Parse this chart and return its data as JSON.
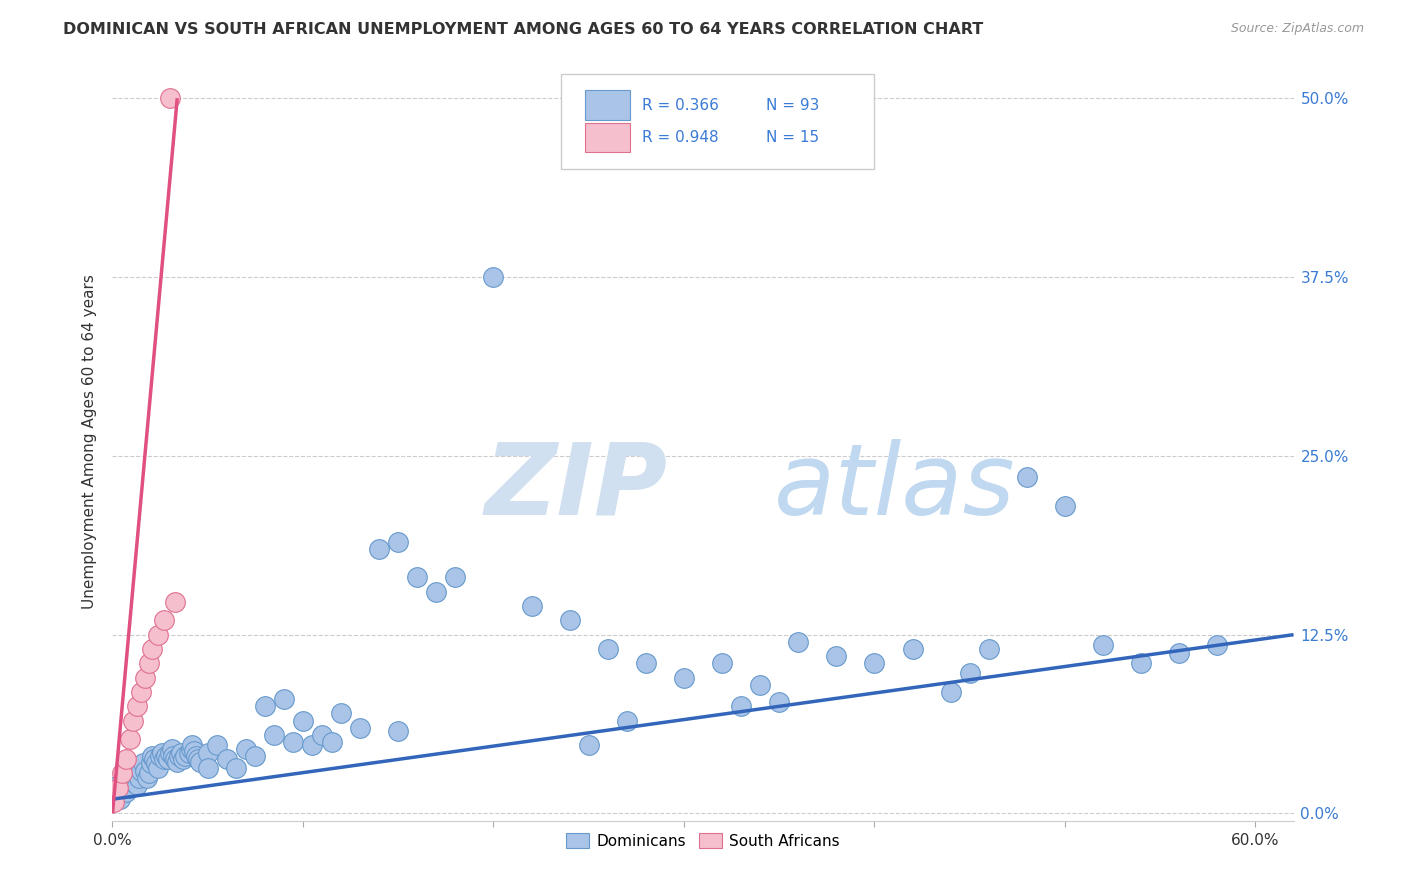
{
  "title": "DOMINICAN VS SOUTH AFRICAN UNEMPLOYMENT AMONG AGES 60 TO 64 YEARS CORRELATION CHART",
  "source": "Source: ZipAtlas.com",
  "ylabel": "Unemployment Among Ages 60 to 64 years",
  "xlim": [
    0.0,
    0.62
  ],
  "ylim": [
    -0.005,
    0.525
  ],
  "dominican_color": "#aac4e8",
  "dominican_edge": "#6699cc",
  "south_african_color": "#f5bfcd",
  "south_african_edge": "#e07090",
  "trend_dominican_color": "#3366bb",
  "trend_south_african_color": "#e05080",
  "r_dominican": 0.366,
  "n_dominican": 93,
  "r_south_african": 0.948,
  "n_south_african": 15,
  "legend_label_1": "Dominicans",
  "legend_label_2": "South Africans",
  "dominican_x": [
    0.001,
    0.002,
    0.003,
    0.004,
    0.005,
    0.006,
    0.007,
    0.008,
    0.009,
    0.01,
    0.011,
    0.012,
    0.013,
    0.014,
    0.015,
    0.016,
    0.017,
    0.018,
    0.019,
    0.02,
    0.021,
    0.022,
    0.023,
    0.024,
    0.025,
    0.026,
    0.027,
    0.028,
    0.029,
    0.03,
    0.031,
    0.032,
    0.033,
    0.034,
    0.035,
    0.036,
    0.037,
    0.038,
    0.04,
    0.041,
    0.042,
    0.043,
    0.044,
    0.045,
    0.046,
    0.05,
    0.055,
    0.06,
    0.065,
    0.07,
    0.075,
    0.08,
    0.085,
    0.09,
    0.095,
    0.1,
    0.105,
    0.11,
    0.115,
    0.12,
    0.13,
    0.14,
    0.15,
    0.16,
    0.17,
    0.18,
    0.2,
    0.22,
    0.24,
    0.26,
    0.28,
    0.3,
    0.32,
    0.34,
    0.36,
    0.38,
    0.4,
    0.42,
    0.44,
    0.46,
    0.48,
    0.5,
    0.52,
    0.54,
    0.56,
    0.58,
    0.25,
    0.15,
    0.35,
    0.45,
    0.05,
    0.33,
    0.27
  ],
  "dominican_y": [
    0.01,
    0.015,
    0.02,
    0.01,
    0.02,
    0.025,
    0.015,
    0.02,
    0.018,
    0.022,
    0.025,
    0.03,
    0.02,
    0.025,
    0.03,
    0.035,
    0.03,
    0.025,
    0.028,
    0.035,
    0.04,
    0.038,
    0.035,
    0.032,
    0.04,
    0.042,
    0.038,
    0.04,
    0.038,
    0.042,
    0.045,
    0.04,
    0.038,
    0.036,
    0.04,
    0.042,
    0.038,
    0.04,
    0.042,
    0.045,
    0.048,
    0.044,
    0.04,
    0.038,
    0.036,
    0.042,
    0.048,
    0.038,
    0.032,
    0.045,
    0.04,
    0.075,
    0.055,
    0.08,
    0.05,
    0.065,
    0.048,
    0.055,
    0.05,
    0.07,
    0.06,
    0.185,
    0.19,
    0.165,
    0.155,
    0.165,
    0.375,
    0.145,
    0.135,
    0.115,
    0.105,
    0.095,
    0.105,
    0.09,
    0.12,
    0.11,
    0.105,
    0.115,
    0.085,
    0.115,
    0.235,
    0.215,
    0.118,
    0.105,
    0.112,
    0.118,
    0.048,
    0.058,
    0.078,
    0.098,
    0.032,
    0.075,
    0.065
  ],
  "south_african_x": [
    0.001,
    0.003,
    0.005,
    0.007,
    0.009,
    0.011,
    0.013,
    0.015,
    0.017,
    0.019,
    0.021,
    0.024,
    0.027,
    0.03,
    0.033
  ],
  "south_african_y": [
    0.008,
    0.018,
    0.028,
    0.038,
    0.052,
    0.065,
    0.075,
    0.085,
    0.095,
    0.105,
    0.115,
    0.125,
    0.135,
    0.5,
    0.148
  ],
  "dom_trend_x0": 0.0,
  "dom_trend_x1": 0.62,
  "dom_trend_y0": 0.01,
  "dom_trend_y1": 0.125,
  "sa_trend_x0": 0.0,
  "sa_trend_x1": 0.034,
  "sa_trend_y0": 0.0,
  "sa_trend_y1": 0.5
}
